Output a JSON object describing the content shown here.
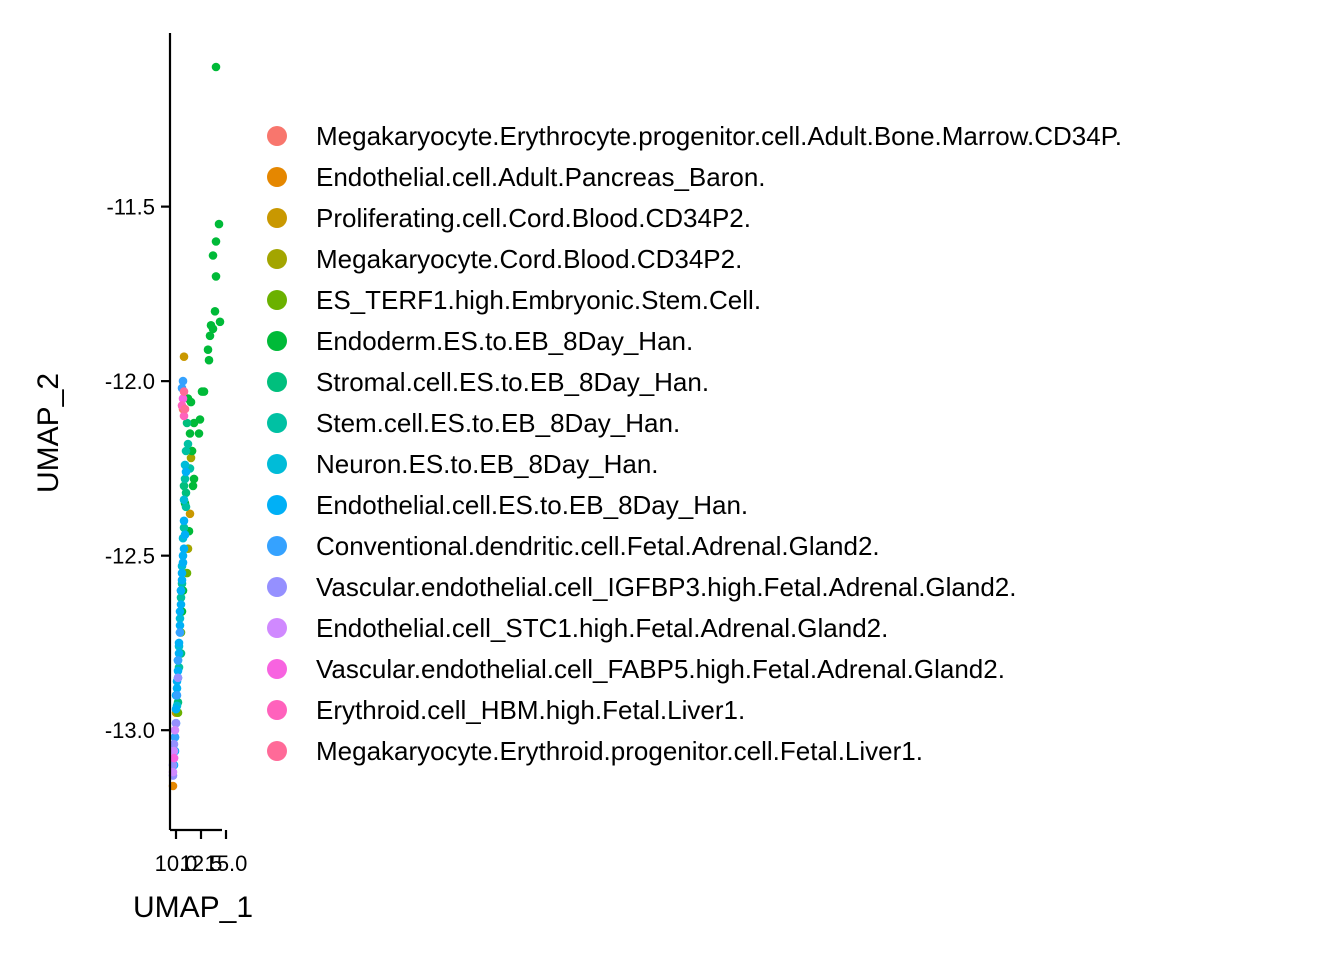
{
  "chart_data": {
    "type": "scatter",
    "xlabel": "UMAP_1",
    "ylabel": "UMAP_2",
    "xlim": [
      9.6,
      14.4
    ],
    "ylim": [
      -13.2,
      -11.1
    ],
    "xticks": [
      10.0,
      12.5,
      15.0
    ],
    "xtick_labels": [
      "10.0",
      "12.5",
      "15.0"
    ],
    "yticks": [
      -13.0,
      -12.5,
      -12.0,
      -11.5
    ],
    "ytick_labels": [
      "-13.0",
      "-12.5",
      "-12.0",
      "-11.5"
    ],
    "grid": false,
    "legend_position": "right",
    "series": [
      {
        "name": "Megakaryocyte.Erythrocyte.progenitor.cell.Adult.Bone.Marrow.CD34P.",
        "color": "#F8766D",
        "points": [
          [
            10.7,
            -12.08
          ]
        ]
      },
      {
        "name": "Endothelial.cell.Adult.Pancreas_Baron.",
        "color": "#E58700",
        "points": [
          [
            9.7,
            -13.16
          ]
        ]
      },
      {
        "name": "Proliferating.cell.Cord.Blood.CD34P2.",
        "color": "#C99800",
        "points": [
          [
            10.8,
            -11.93
          ],
          [
            11.4,
            -12.38
          ],
          [
            10.0,
            -12.95
          ]
        ]
      },
      {
        "name": "Megakaryocyte.Cord.Blood.CD34P2.",
        "color": "#A3A500",
        "points": [
          [
            11.5,
            -12.22
          ],
          [
            11.2,
            -12.48
          ]
        ]
      },
      {
        "name": "ES_TERF1.high.Embryonic.Stem.Cell.",
        "color": "#6BB100",
        "points": [
          [
            11.6,
            -12.2
          ],
          [
            11.1,
            -12.55
          ],
          [
            10.2,
            -12.95
          ],
          [
            10.5,
            -12.72
          ]
        ]
      },
      {
        "name": "Endoderm.ES.to.EB_8Day_Han.",
        "color": "#00BA38",
        "points": [
          [
            14.0,
            -11.1
          ],
          [
            14.3,
            -11.55
          ],
          [
            14.0,
            -11.6
          ],
          [
            13.7,
            -11.64
          ],
          [
            14.0,
            -11.7
          ],
          [
            13.9,
            -11.8
          ],
          [
            14.4,
            -11.83
          ],
          [
            13.5,
            -11.84
          ],
          [
            13.7,
            -11.85
          ],
          [
            13.4,
            -11.87
          ],
          [
            13.2,
            -11.91
          ],
          [
            13.3,
            -11.94
          ],
          [
            12.6,
            -12.03
          ],
          [
            12.8,
            -12.03
          ],
          [
            11.2,
            -12.05
          ],
          [
            11.5,
            -12.06
          ],
          [
            11.8,
            -12.12
          ],
          [
            12.4,
            -12.11
          ],
          [
            12.3,
            -12.15
          ],
          [
            11.4,
            -12.15
          ],
          [
            11.6,
            -12.2
          ],
          [
            11.1,
            -12.25
          ],
          [
            11.8,
            -12.28
          ],
          [
            11.7,
            -12.3
          ],
          [
            10.9,
            -12.35
          ],
          [
            11.3,
            -12.43
          ],
          [
            10.7,
            -12.6
          ],
          [
            10.6,
            -12.66
          ]
        ]
      },
      {
        "name": "Stromal.cell.ES.to.EB_8Day_Han.",
        "color": "#00BF7D",
        "points": [
          [
            11.1,
            -12.12
          ],
          [
            10.8,
            -12.3
          ],
          [
            11.0,
            -12.32
          ],
          [
            10.5,
            -12.78
          ],
          [
            10.2,
            -12.92
          ]
        ]
      },
      {
        "name": "Stem.cell.ES.to.EB_8Day_Han.",
        "color": "#00C1A3",
        "points": [
          [
            11.2,
            -12.18
          ],
          [
            11.0,
            -12.2
          ],
          [
            11.4,
            -12.25
          ],
          [
            10.9,
            -12.28
          ],
          [
            11.0,
            -12.36
          ],
          [
            10.8,
            -12.42
          ],
          [
            10.6,
            -12.58
          ],
          [
            10.5,
            -12.62
          ],
          [
            10.3,
            -12.82
          ]
        ]
      },
      {
        "name": "Neuron.ES.to.EB_8Day_Han.",
        "color": "#00BCD8",
        "points": [
          [
            10.9,
            -12.24
          ],
          [
            10.8,
            -12.34
          ],
          [
            10.7,
            -12.45
          ],
          [
            10.6,
            -12.53
          ],
          [
            10.5,
            -12.6
          ],
          [
            10.4,
            -12.68
          ],
          [
            10.3,
            -12.76
          ],
          [
            10.2,
            -12.85
          ],
          [
            10.1,
            -12.93
          ]
        ]
      },
      {
        "name": "Endothelial.cell.ES.to.EB_8Day_Han.",
        "color": "#00B0F6",
        "points": [
          [
            11.0,
            -12.26
          ],
          [
            10.8,
            -12.4
          ],
          [
            10.9,
            -12.44
          ],
          [
            10.8,
            -12.48
          ],
          [
            10.7,
            -12.5
          ],
          [
            10.7,
            -12.52
          ],
          [
            10.6,
            -12.55
          ],
          [
            10.6,
            -12.57
          ],
          [
            10.5,
            -12.6
          ],
          [
            10.5,
            -12.64
          ],
          [
            10.4,
            -12.66
          ],
          [
            10.4,
            -12.7
          ],
          [
            10.4,
            -12.72
          ],
          [
            10.3,
            -12.75
          ],
          [
            10.3,
            -12.78
          ],
          [
            10.2,
            -12.8
          ],
          [
            10.2,
            -12.83
          ],
          [
            10.1,
            -12.86
          ],
          [
            10.1,
            -12.88
          ],
          [
            10.0,
            -12.9
          ],
          [
            10.0,
            -12.94
          ],
          [
            10.0,
            -12.98
          ],
          [
            9.9,
            -13.02
          ],
          [
            9.9,
            -13.06
          ],
          [
            9.8,
            -13.1
          ]
        ]
      },
      {
        "name": "Conventional.dendritic.cell.Fetal.Adrenal.Gland2.",
        "color": "#35A2FF",
        "points": [
          [
            10.7,
            -12.0
          ],
          [
            10.6,
            -12.02
          ],
          [
            10.4,
            -12.72
          ],
          [
            10.2,
            -12.8
          ],
          [
            10.1,
            -12.9
          ],
          [
            9.9,
            -13.02
          ]
        ]
      },
      {
        "name": "Vascular.endothelial.cell_IGFBP3.high.Fetal.Adrenal.Gland2.",
        "color": "#9590FF",
        "points": [
          [
            10.2,
            -12.85
          ],
          [
            10.0,
            -12.98
          ],
          [
            9.8,
            -13.04
          ],
          [
            9.8,
            -13.08
          ],
          [
            9.7,
            -13.1
          ],
          [
            9.7,
            -13.13
          ]
        ]
      },
      {
        "name": "Endothelial.cell_STC1.high.Fetal.Adrenal.Gland2.",
        "color": "#D089FF",
        "points": [
          [
            9.9,
            -13.0
          ],
          [
            9.8,
            -13.06
          ],
          [
            9.7,
            -13.12
          ]
        ]
      },
      {
        "name": "Vascular.endothelial.cell_FABP5.high.Fetal.Adrenal.Gland2.",
        "color": "#F763E0",
        "points": [
          [
            10.7,
            -12.05
          ],
          [
            9.8,
            -13.08
          ]
        ]
      },
      {
        "name": "Erythroid.cell_HBM.high.Fetal.Liver1.",
        "color": "#FF62BC",
        "points": [
          [
            10.8,
            -12.1
          ],
          [
            10.6,
            -12.07
          ]
        ]
      },
      {
        "name": "Megakaryocyte.Erythroid.progenitor.cell.Fetal.Liver1.",
        "color": "#FF6A98",
        "points": [
          [
            10.8,
            -12.03
          ],
          [
            10.9,
            -12.08
          ]
        ]
      }
    ]
  }
}
